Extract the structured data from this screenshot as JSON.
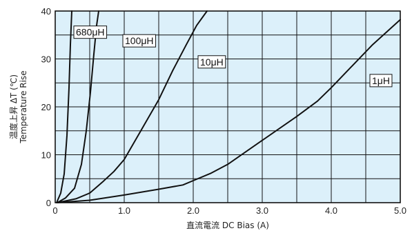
{
  "chart_data": {
    "type": "line",
    "xlabel": "直流電流 DC Bias (A)",
    "ylabel_jp": "温度上昇 ΔT (℃)",
    "ylabel_en": "Temperature Rise",
    "xlim": [
      0,
      5.0
    ],
    "ylim": [
      0,
      40
    ],
    "x_ticks": [
      "0",
      "1.0",
      "2.0",
      "3.0",
      "4.0",
      "5.0"
    ],
    "x_tick_values": [
      0,
      1,
      2,
      3,
      4,
      5
    ],
    "y_ticks": [
      "0",
      "10",
      "20",
      "30",
      "40"
    ],
    "y_tick_values": [
      0,
      10,
      20,
      30,
      40
    ],
    "x_grid_step": 0.5,
    "y_grid_step": 5,
    "grid": true,
    "colors": {
      "plot_bg": "#dcf0fa",
      "grid": "#111111",
      "line": "#111111"
    },
    "series": [
      {
        "name": "680μH",
        "x": [
          0.02,
          0.08,
          0.13,
          0.17,
          0.2,
          0.22,
          0.24
        ],
        "y": [
          0,
          2,
          6,
          14,
          24,
          33,
          40
        ]
      },
      {
        "name": "100μH",
        "x": [
          0.03,
          0.15,
          0.28,
          0.38,
          0.45,
          0.51,
          0.56,
          0.6,
          0.63
        ],
        "y": [
          0,
          1,
          3,
          8,
          15,
          23,
          31,
          37,
          40
        ]
      },
      {
        "name": "10μH",
        "x": [
          0.03,
          0.3,
          0.5,
          0.7,
          0.85,
          1.0,
          1.2,
          1.5,
          1.7,
          1.9,
          2.05,
          2.2
        ],
        "y": [
          0,
          0.8,
          2,
          4.5,
          6.5,
          9,
          14,
          21.5,
          27.5,
          33,
          37,
          40
        ]
      },
      {
        "name": "1μH",
        "x": [
          0.03,
          0.5,
          1.0,
          1.5,
          1.85,
          2.0,
          2.25,
          2.5,
          3.0,
          3.5,
          3.8,
          4.0,
          4.3,
          4.6,
          5.0
        ],
        "y": [
          0,
          0.5,
          1.6,
          2.8,
          3.7,
          4.6,
          6.1,
          8,
          13,
          18,
          21.2,
          24,
          28.5,
          33,
          38.2
        ]
      }
    ],
    "labels": [
      {
        "text": "680μH",
        "series": 0,
        "x": 0.3,
        "y": 35.4
      },
      {
        "text": "100μH",
        "series": 1,
        "x": 1.01,
        "y": 33.6
      },
      {
        "text": "10μH",
        "series": 2,
        "x": 2.1,
        "y": 29.2
      },
      {
        "text": "1μH",
        "series": 3,
        "x": 4.59,
        "y": 25.3
      }
    ]
  }
}
